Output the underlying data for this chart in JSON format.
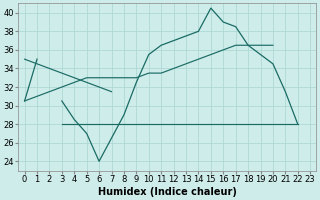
{
  "xlabel": "Humidex (Indice chaleur)",
  "background_color": "#ceecea",
  "grid_color": "#aed8d4",
  "line_color": "#1a6b64",
  "x_data": [
    0,
    1,
    2,
    3,
    4,
    5,
    6,
    7,
    8,
    9,
    10,
    11,
    12,
    13,
    14,
    15,
    16,
    17,
    18,
    19,
    20,
    21,
    22,
    23
  ],
  "y_main": [
    30.5,
    35,
    null,
    30.5,
    28.5,
    27,
    24,
    26.5,
    29,
    32.5,
    35.5,
    36.5,
    37,
    37.5,
    38,
    40.5,
    39,
    38.5,
    36.5,
    35.5,
    34.5,
    31.5,
    28,
    null
  ],
  "y_flat": [
    null,
    null,
    null,
    28,
    28,
    28,
    28,
    28,
    28,
    28,
    28,
    28,
    28,
    28,
    28,
    28,
    28,
    28,
    28,
    28,
    28,
    28,
    28,
    null
  ],
  "y_diag1": [
    35,
    34.5,
    34,
    33.5,
    33,
    32.5,
    32,
    31.5,
    null,
    null,
    null,
    null,
    null,
    null,
    null,
    null,
    null,
    null,
    null,
    null,
    null,
    null,
    null,
    null
  ],
  "y_diag2": [
    30.5,
    31,
    31.5,
    32,
    32.5,
    33,
    33,
    33,
    33,
    33,
    33.5,
    33.5,
    34,
    34.5,
    35,
    35.5,
    36,
    36.5,
    36.5,
    36.5,
    36.5,
    null,
    null,
    null
  ],
  "ylim": [
    23,
    41
  ],
  "xlim": [
    -0.5,
    23.5
  ],
  "yticks": [
    24,
    26,
    28,
    30,
    32,
    34,
    36,
    38,
    40
  ],
  "xticks": [
    0,
    1,
    2,
    3,
    4,
    5,
    6,
    7,
    8,
    9,
    10,
    11,
    12,
    13,
    14,
    15,
    16,
    17,
    18,
    19,
    20,
    21,
    22,
    23
  ],
  "fontsize_xlabel": 7,
  "fontsize_ticks": 6
}
